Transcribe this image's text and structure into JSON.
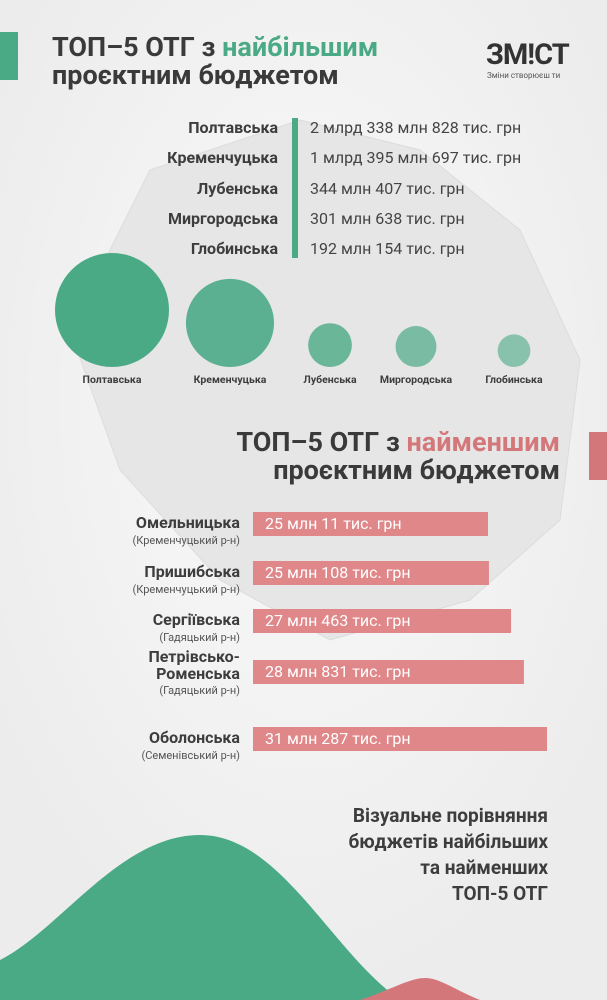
{
  "header": {
    "lead": "ТОП–5 ОТГ з",
    "highlight": "найбільшим",
    "rest": "проєктним бюджетом"
  },
  "logo": {
    "name": "ЗМ!СТ",
    "tagline": "Зміни створюєш ти"
  },
  "largest": {
    "items": [
      {
        "name": "Полтавська",
        "budget": {
          "value": 2338828000,
          "label": "2 млрд 338 млн 828 тис. грн"
        }
      },
      {
        "name": "Кременчуцька",
        "budget": {
          "value": 1395697000,
          "label": "1 млрд 395 млн 697 тис. грн"
        }
      },
      {
        "name": "Лубенська",
        "budget": {
          "value": 344407000,
          "label": "344 млн 407 тис. грн"
        }
      },
      {
        "name": "Миргородська",
        "budget": {
          "value": 301638000,
          "label": "301 млн 638 тис. грн"
        }
      },
      {
        "name": "Глобинська",
        "budget": {
          "value": 192154000,
          "label": "192 млн 154 тис. грн"
        }
      }
    ]
  },
  "smallest": {
    "lead": "ТОП–5 ОТГ з",
    "highlight": "найменшим",
    "rest": "проєктним бюджетом",
    "items": [
      {
        "name": "Омельницька",
        "district": "(Кременчуцький р-н)",
        "budget": {
          "value": 25011000,
          "label": "25 млн 11 тис. грн"
        }
      },
      {
        "name": "Пришибська",
        "district": "(Кременчуцький р-н)",
        "budget": {
          "value": 25108000,
          "label": "25 млн 108 тис. грн"
        }
      },
      {
        "name": "Сергіївська",
        "district": "(Гадяцький р-н)",
        "budget": {
          "value": 27463000,
          "label": "27 млн 463 тис. грн"
        }
      },
      {
        "name": "Петрівсько-Роменська",
        "district": "(Гадяцький р-н)",
        "budget": {
          "value": 28831000,
          "label": "28 млн 831 тис. грн"
        }
      },
      {
        "name": "Оболонська",
        "district": "(Семенівський р-н)",
        "budget": {
          "value": 31287000,
          "label": "31 млн 287 тис. грн"
        }
      }
    ]
  },
  "footer": {
    "lines": [
      "Візуальне порівняння",
      "бюджетів найбільших",
      "та найменших",
      "ТОП-5 ОТГ"
    ]
  }
}
